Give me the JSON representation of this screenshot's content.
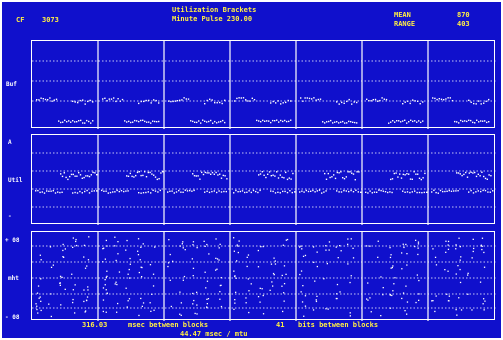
{
  "header": {
    "left_label": "CF",
    "left_value": "3073",
    "title_line1": "Utilization Brackets",
    "title_line2": "Minute Pulse   230.00",
    "right_label1": "MEAN",
    "right_value1": "870",
    "right_label2": "RANGE",
    "right_value2": "403"
  },
  "axes": {
    "top_label": "Buf",
    "mid_top_tick": "A",
    "mid_label": "Util",
    "mid_bottom_tick": "-",
    "bottom_top_tick": "+ 08",
    "bottom_label": "mht",
    "bottom_bottom_tick": "- 08"
  },
  "footer": {
    "line1_left": "316.03",
    "line1_left_text": "msec between blocks",
    "line1_right": "41",
    "line1_right_text": "bits between blocks",
    "line2": "44.47  msec / mtu"
  },
  "colors": {
    "background": "#1010cc",
    "foreground": "#ffffff",
    "highlight": "#ffee44"
  }
}
